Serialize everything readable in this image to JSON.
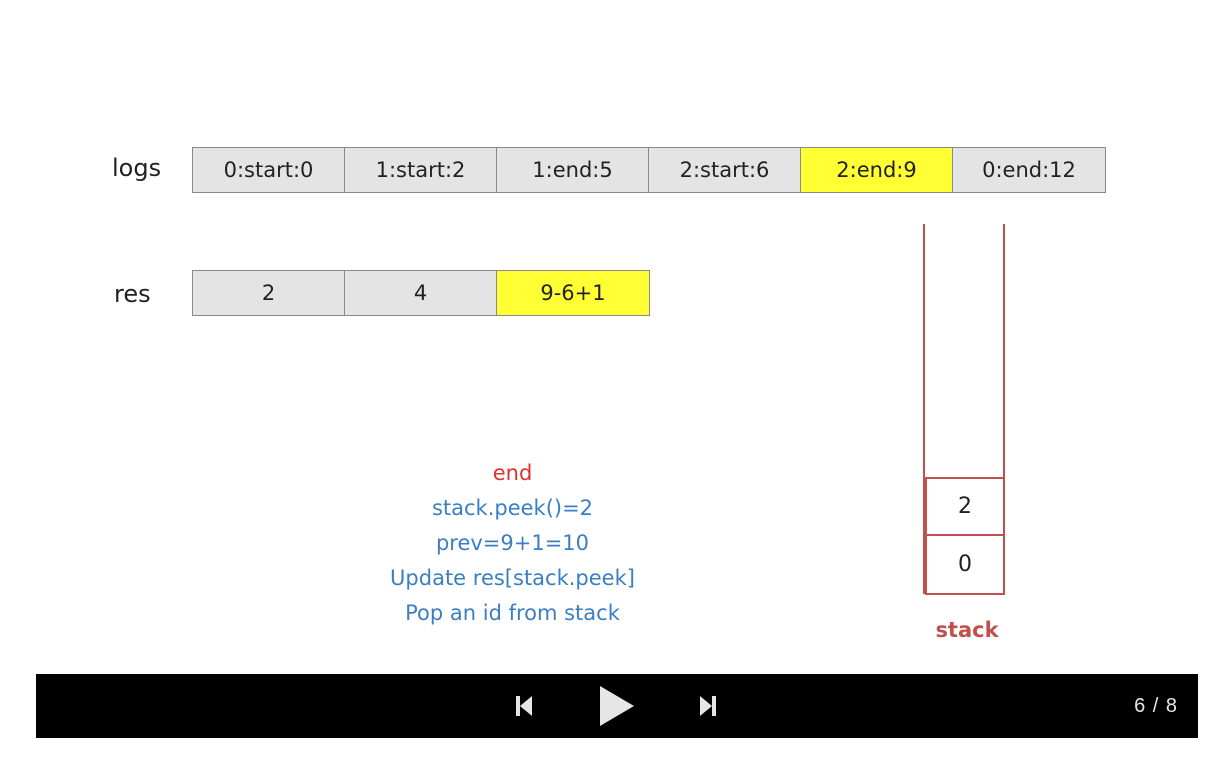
{
  "slide": {
    "logs": {
      "label": "logs",
      "cells": [
        {
          "text": "0:start:0",
          "highlight": false
        },
        {
          "text": "1:start:2",
          "highlight": false
        },
        {
          "text": "1:end:5",
          "highlight": false
        },
        {
          "text": "2:start:6",
          "highlight": false
        },
        {
          "text": "2:end:9",
          "highlight": true
        },
        {
          "text": "0:end:12",
          "highlight": false
        }
      ]
    },
    "res": {
      "label": "res",
      "cells": [
        {
          "text": "2",
          "highlight": false
        },
        {
          "text": "4",
          "highlight": false
        },
        {
          "text": "9-6+1",
          "highlight": true
        }
      ]
    },
    "explanation": {
      "operation": "end",
      "steps": [
        "stack.peek()=2",
        "prev=9+1=10",
        "Update res[stack.peek]",
        "Pop an id from stack"
      ]
    },
    "stack": {
      "label": "stack",
      "items_top_to_bottom": [
        "2",
        "0"
      ]
    }
  },
  "player": {
    "prev_icon": "skip-previous-icon",
    "play_icon": "play-icon",
    "next_icon": "skip-next-icon",
    "counter": "6 / 8"
  },
  "colors": {
    "highlight": "#ffff33",
    "cell_bg": "#e4e4e4",
    "stack_red": "#c0504d",
    "op_red": "#e03030",
    "step_blue": "#3a7fc4",
    "controls_bg": "#000000"
  }
}
